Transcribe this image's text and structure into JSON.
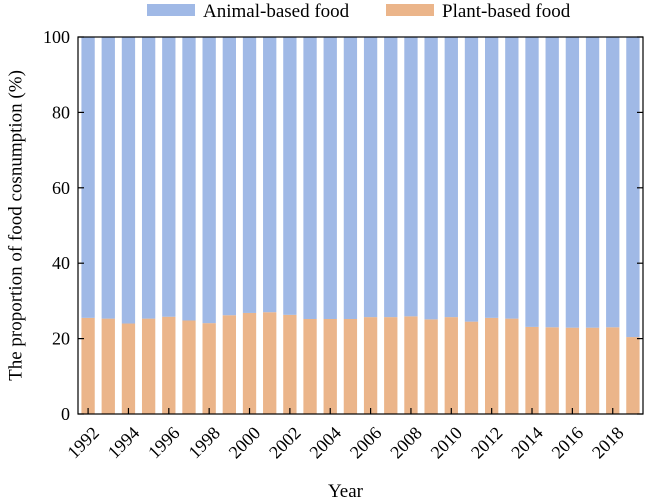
{
  "chart_data": {
    "type": "bar",
    "stacked": true,
    "categories": [
      "1992",
      "1993",
      "1994",
      "1995",
      "1996",
      "1997",
      "1998",
      "1999",
      "2000",
      "2001",
      "2002",
      "2003",
      "2004",
      "2005",
      "2006",
      "2007",
      "2008",
      "2009",
      "2010",
      "2011",
      "2012",
      "2013",
      "2014",
      "2015",
      "2016",
      "2017",
      "2018",
      "2019"
    ],
    "x_tick_labels": [
      "1992",
      "1994",
      "1996",
      "1998",
      "2000",
      "2002",
      "2004",
      "2006",
      "2008",
      "2010",
      "2012",
      "2014",
      "2016",
      "2018"
    ],
    "series": [
      {
        "name": "Plant-based food",
        "color": "#ebb58a",
        "values": [
          25.5,
          25.3,
          24.0,
          25.3,
          25.8,
          24.8,
          24.1,
          26.2,
          26.8,
          27.0,
          26.3,
          25.2,
          25.2,
          25.2,
          25.7,
          25.7,
          25.9,
          25.1,
          25.7,
          24.5,
          25.5,
          25.3,
          23.1,
          23.0,
          22.9,
          22.9,
          23.0,
          20.4
        ]
      },
      {
        "name": "Animal-based food",
        "color": "#a0b9e6",
        "values": [
          74.5,
          74.7,
          76.0,
          74.7,
          74.2,
          75.2,
          75.9,
          73.8,
          73.2,
          73.0,
          73.7,
          74.8,
          74.8,
          74.8,
          74.3,
          74.3,
          74.1,
          74.9,
          74.3,
          75.5,
          74.5,
          74.7,
          76.9,
          77.0,
          77.1,
          77.1,
          77.0,
          79.6
        ]
      }
    ],
    "legend_order": [
      "Animal-based food",
      "Plant-based food"
    ],
    "legend_position": "top",
    "xlabel": "Year",
    "ylabel": "The proportion of food cosnumption (%)",
    "ylim": [
      0,
      100
    ],
    "yticks": [
      "0",
      "20",
      "40",
      "60",
      "80",
      "100"
    ],
    "grid": false
  }
}
